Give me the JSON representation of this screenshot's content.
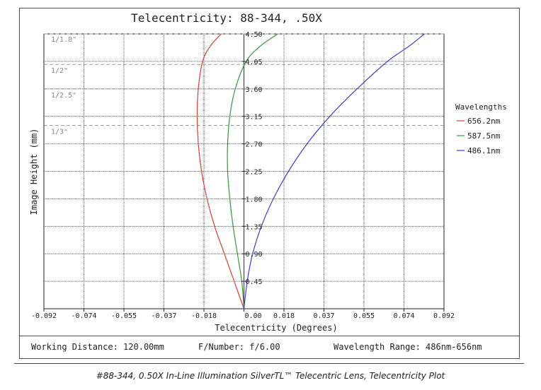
{
  "chart_data": {
    "type": "line",
    "title": "Telecentricity: 88-344, .50X",
    "xlabel": "Telecentricity (Degrees)",
    "ylabel": "Image Height (mm)",
    "xlim": [
      -0.092,
      0.092
    ],
    "ylim": [
      0,
      4.5
    ],
    "x_ticks": [
      "-0.092",
      "-0.074",
      "-0.055",
      "-0.037",
      "-0.018",
      "0.00",
      "0.018",
      "0.037",
      "0.055",
      "0.074",
      "0.092"
    ],
    "y_ticks": [
      "0.45",
      "0.90",
      "1.35",
      "1.80",
      "2.25",
      "2.70",
      "3.15",
      "3.60",
      "4.05",
      "4.50"
    ],
    "grid": true,
    "legend_title": "Wavelengths",
    "legend_placement": "right",
    "sensor_marks": [
      {
        "label": "1/1.8\"",
        "y": 4.5
      },
      {
        "label": "1/2\"",
        "y": 4.0
      },
      {
        "label": "1/2.5\"",
        "y": 3.6
      },
      {
        "label": "1/3\"",
        "y": 3.0
      }
    ],
    "series": [
      {
        "name": "656.2nm",
        "color": "#e03c31",
        "x": [
          0.0,
          -0.0045,
          -0.009,
          -0.0135,
          -0.017,
          -0.0195,
          -0.021,
          -0.0215,
          -0.021,
          -0.019,
          -0.0155,
          -0.0105
        ],
        "y": [
          0.0,
          0.45,
          0.9,
          1.35,
          1.8,
          2.25,
          2.7,
          3.15,
          3.6,
          4.05,
          4.3,
          4.5
        ]
      },
      {
        "name": "587.5nm",
        "color": "#2e9a3a",
        "x": [
          0.0,
          -0.001,
          -0.003,
          -0.005,
          -0.0065,
          -0.0075,
          -0.0075,
          -0.0065,
          -0.004,
          0.001,
          0.0075,
          0.0155
        ],
        "y": [
          0.0,
          0.45,
          0.9,
          1.35,
          1.8,
          2.25,
          2.7,
          3.15,
          3.6,
          4.05,
          4.3,
          4.5
        ]
      },
      {
        "name": "486.1nm",
        "color": "#3a3ad8",
        "x": [
          0.0,
          0.0015,
          0.004,
          0.008,
          0.0135,
          0.0205,
          0.029,
          0.0395,
          0.052,
          0.066,
          0.076,
          0.083
        ],
        "y": [
          0.0,
          0.45,
          0.9,
          1.35,
          1.8,
          2.25,
          2.7,
          3.15,
          3.6,
          4.05,
          4.3,
          4.5
        ]
      }
    ]
  },
  "footer": {
    "working_distance": "Working Distance: 120.00mm",
    "f_number": "F/Number: f/6.00",
    "wavelength_range": "Wavelength Range: 486nm-656nm"
  },
  "caption": "#88-344, 0.50X In-Line Illumination SilverTL™ Telecentric Lens, Telecentricity Plot"
}
